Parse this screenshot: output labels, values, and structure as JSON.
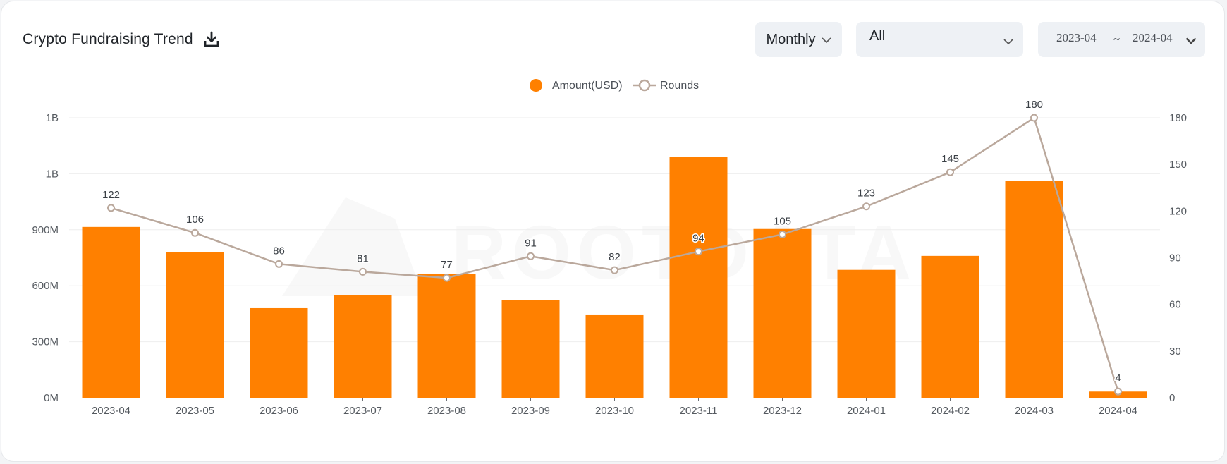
{
  "header": {
    "title": "Crypto Fundraising Trend",
    "period_select": "Monthly",
    "category_select": "All",
    "date_range": {
      "start": "2023-04",
      "separator": "~",
      "end": "2024-04"
    }
  },
  "watermark": "ROOTDATA",
  "colors": {
    "bar": "#ff8000",
    "line": "#baa89c",
    "grid": "#eeeeee",
    "axis": "#6b6f75"
  },
  "chart_data": {
    "type": "bar",
    "categories": [
      "2023-04",
      "2023-05",
      "2023-06",
      "2023-07",
      "2023-08",
      "2023-09",
      "2023-10",
      "2023-11",
      "2023-12",
      "2024-01",
      "2024-02",
      "2024-03",
      "2024-04"
    ],
    "series": [
      {
        "name": "Amount(USD)",
        "type": "bar",
        "axis": "left",
        "values": [
          915000000,
          782000000,
          480000000,
          550000000,
          665000000,
          525000000,
          446000000,
          1290000000,
          904000000,
          685000000,
          760000000,
          1160000000,
          33000000
        ]
      },
      {
        "name": "Rounds",
        "type": "line",
        "axis": "right",
        "values": [
          122,
          106,
          86,
          81,
          77,
          91,
          82,
          94,
          105,
          123,
          145,
          180,
          4
        ]
      }
    ],
    "y_left": {
      "ticks": [
        "0M",
        "300M",
        "600M",
        "900M",
        "1B",
        "1B"
      ],
      "range": [
        0,
        1500000000
      ]
    },
    "y_right": {
      "ticks": [
        "0",
        "30",
        "60",
        "90",
        "120",
        "150",
        "180"
      ],
      "range": [
        0,
        180
      ]
    },
    "legend_position": "top-center",
    "grid": true
  }
}
